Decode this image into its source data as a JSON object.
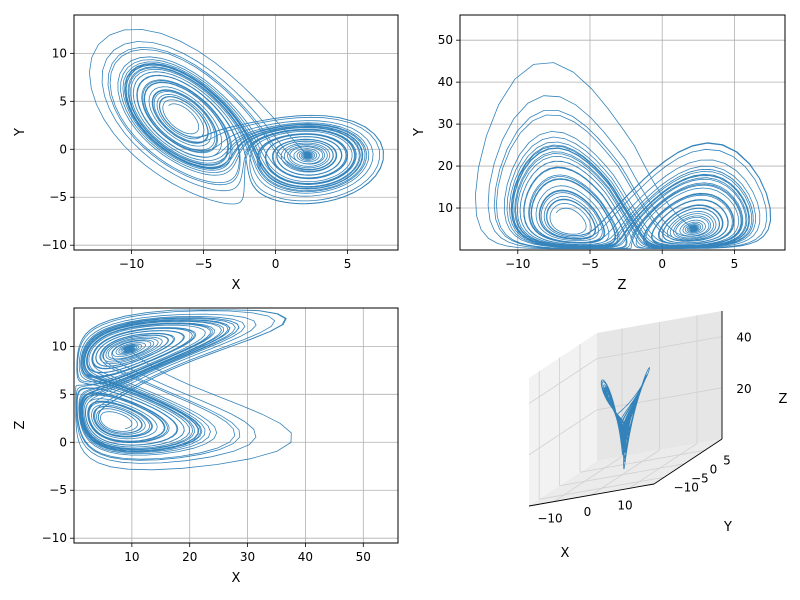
{
  "chart_data": [
    {
      "type": "line",
      "panel": "top-left",
      "xlabel": "X",
      "ylabel": "Y",
      "xlim": [
        -14,
        8.5
      ],
      "ylim": [
        -10.5,
        14
      ],
      "xticks": [
        -10,
        -5,
        0,
        5
      ],
      "yticks": [
        -10,
        -5,
        0,
        5,
        10
      ],
      "grid": true,
      "color": "#1f77b4",
      "description_free": true
    },
    {
      "type": "line",
      "panel": "top-right",
      "xlabel": "Z",
      "ylabel": "Y",
      "xlim": [
        -14,
        8.5
      ],
      "ylim": [
        0,
        56
      ],
      "xticks": [
        -10,
        -5,
        0,
        5
      ],
      "yticks": [
        10,
        20,
        30,
        40,
        50
      ],
      "grid": true,
      "color": "#1f77b4"
    },
    {
      "type": "line",
      "panel": "bottom-left",
      "xlabel": "X",
      "ylabel": "Z",
      "xlim": [
        0,
        56
      ],
      "ylim": [
        -10.5,
        14
      ],
      "xticks": [
        10,
        20,
        30,
        40,
        50
      ],
      "yticks": [
        -10,
        -5,
        0,
        5,
        10
      ],
      "grid": true,
      "color": "#1f77b4"
    },
    {
      "type": "line3d",
      "panel": "bottom-right",
      "xlabel": "X",
      "ylabel": "Y",
      "zlabel": "Z",
      "xticks": [
        -10,
        0,
        10
      ],
      "yticks": [
        -10,
        -5,
        0,
        5
      ],
      "zticks": [
        20,
        40
      ],
      "grid": true,
      "color": "#1f77b4"
    }
  ]
}
